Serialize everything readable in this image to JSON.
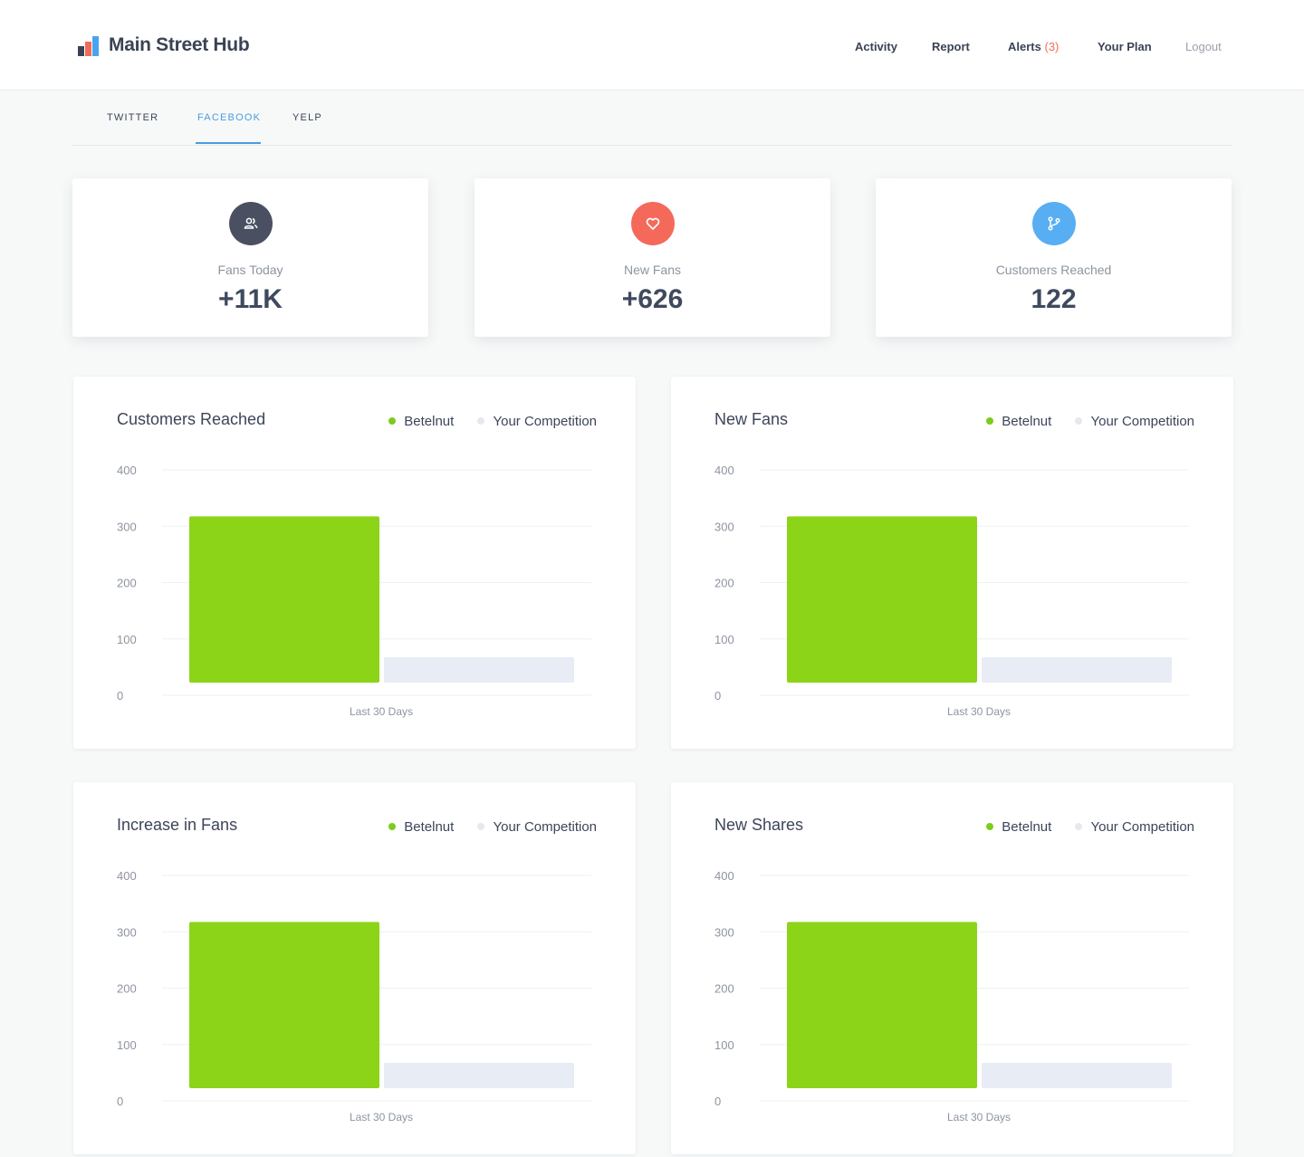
{
  "app": {
    "name": "Main Street Hub"
  },
  "nav": {
    "activity": "Activity",
    "report": "Report",
    "alerts": "Alerts",
    "alerts_count": "(3)",
    "plan": "Your Plan",
    "logout": "Logout"
  },
  "tabs": [
    "TWITTER",
    "FACEBOOK",
    "YELP"
  ],
  "active_tab": "FACEBOOK",
  "stats": [
    {
      "label": "Fans Today",
      "value": "+11K",
      "icon": "users-icon",
      "color": "#4a5061"
    },
    {
      "label": "New Fans",
      "value": "+626",
      "icon": "heart-icon",
      "color": "#f4695a"
    },
    {
      "label": "Customers Reached",
      "value": "122",
      "icon": "branch-icon",
      "color": "#58aef2"
    }
  ],
  "legend": {
    "primary": "Betelnut",
    "secondary": "Your Competition"
  },
  "colors": {
    "primary": "#8cd418",
    "secondary": "#e8ecf4",
    "accent": "#4a9be0",
    "alert": "#f26b57"
  },
  "chart_data": [
    {
      "type": "bar",
      "title": "Customers Reached",
      "categories": [
        "Last 30 Days"
      ],
      "xlabel": "Last 30 Days",
      "series": [
        {
          "name": "Betelnut",
          "values": [
            340
          ]
        },
        {
          "name": "Your Competition",
          "values": [
            90
          ]
        }
      ],
      "ylim": [
        0,
        400
      ],
      "yticks": [
        0,
        100,
        200,
        300,
        400
      ],
      "grid": true,
      "legend": "top-right"
    },
    {
      "type": "bar",
      "title": "New Fans",
      "categories": [
        "Last 30 Days"
      ],
      "xlabel": "Last 30 Days",
      "series": [
        {
          "name": "Betelnut",
          "values": [
            340
          ]
        },
        {
          "name": "Your Competition",
          "values": [
            90
          ]
        }
      ],
      "ylim": [
        0,
        400
      ],
      "yticks": [
        0,
        100,
        200,
        300,
        400
      ],
      "grid": true,
      "legend": "top-right"
    },
    {
      "type": "bar",
      "title": "Increase in Fans",
      "categories": [
        "Last 30 Days"
      ],
      "xlabel": "Last 30 Days",
      "series": [
        {
          "name": "Betelnut",
          "values": [
            340
          ]
        },
        {
          "name": "Your Competition",
          "values": [
            90
          ]
        }
      ],
      "ylim": [
        0,
        400
      ],
      "yticks": [
        0,
        100,
        200,
        300,
        400
      ],
      "grid": true,
      "legend": "top-right"
    },
    {
      "type": "bar",
      "title": "New Shares",
      "categories": [
        "Last 30 Days"
      ],
      "xlabel": "Last 30 Days",
      "series": [
        {
          "name": "Betelnut",
          "values": [
            340
          ]
        },
        {
          "name": "Your Competition",
          "values": [
            90
          ]
        }
      ],
      "ylim": [
        0,
        400
      ],
      "yticks": [
        0,
        100,
        200,
        300,
        400
      ],
      "grid": true,
      "legend": "top-right"
    }
  ]
}
